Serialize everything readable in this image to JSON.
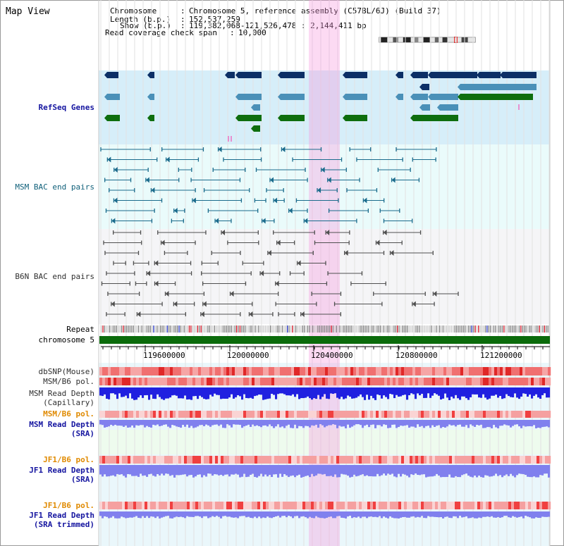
{
  "window": {
    "title": "Map View"
  },
  "info": {
    "chromosome_key": "Chromosome",
    "chromosome_val": "Chromosome 5, reference assembly (C57BL/6J) (Build 37)",
    "length_key": "Length (b.p.)",
    "length_val": "152,537,259",
    "show_key": "Show (b.p.)",
    "show_val": "119,382,068-121,526,478 : 2,144,411 bp",
    "coverage_key": "Read coverage check span",
    "coverage_val": "10,000"
  },
  "tracks": {
    "refseq": "RefSeq Genes",
    "msm_bac": "MSM BAC end pairs",
    "b6n_bac": "B6N BAC end pairs",
    "repeat": "Repeat",
    "chromosome": "chromosome 5",
    "dbsnp": "dbSNP(Mouse)",
    "msm_b6_pol": "MSM/B6 pol.",
    "msm_depth_cap_1": "MSM Read Depth",
    "msm_depth_cap_2": "(Capillary)",
    "msm_b6_pol_sra": "MSM/B6 pol.",
    "msm_depth_sra_1": "MSM Read Depth",
    "msm_depth_sra_2": "(SRA)",
    "jf1_b6_pol": "JF1/B6 pol.",
    "jf1_depth_1": "JF1 Read Depth",
    "jf1_depth_2": "(SRA)",
    "jf1_b6_pol_t": "JF1/B6 pol.",
    "jf1_depth_t_1": "JF1 Read Depth",
    "jf1_depth_t_2": "(SRA trimmed)"
  },
  "axis": {
    "ticks": [
      "119600000",
      "120000000",
      "120400000",
      "120800000",
      "121200000"
    ]
  },
  "colors": {
    "highlight": "#f7b3e3",
    "refseq_bg": "#d6eef9",
    "gene_dark": "#0c2f66",
    "gene_mid": "#4a90b8",
    "gene_green": "#0e6e0e",
    "chrom_green": "#0b6b0b",
    "snp_red": "#f05050",
    "depth_blue": "#2020e0",
    "depth_light": "#8080ee"
  }
}
